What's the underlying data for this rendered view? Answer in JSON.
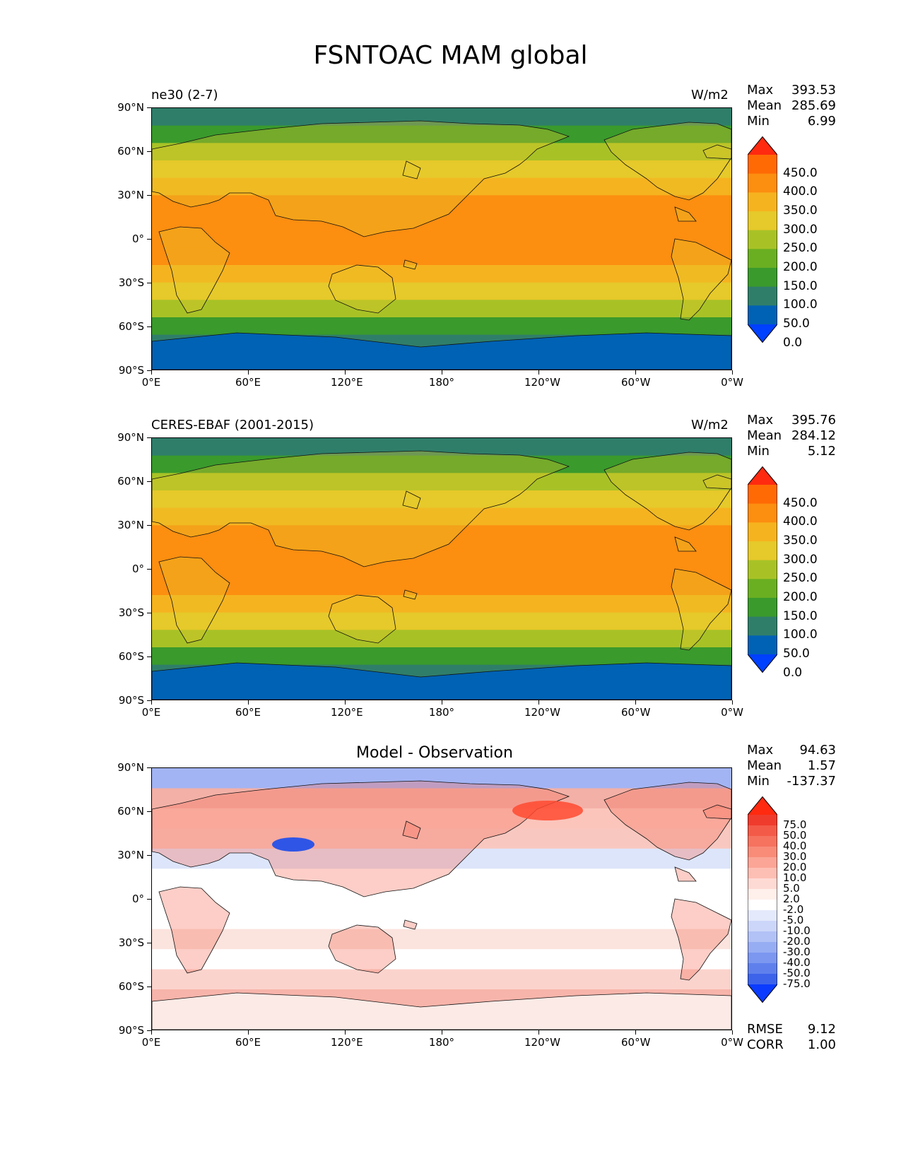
{
  "figure": {
    "title": "FSNTOAC MAM global"
  },
  "axes": {
    "lat_ticks": [
      "90°N",
      "60°N",
      "30°N",
      "0°",
      "30°S",
      "60°S",
      "90°S"
    ],
    "lon_ticks": [
      "0°E",
      "60°E",
      "120°E",
      "180°",
      "120°W",
      "60°W",
      "0°W"
    ]
  },
  "panels": [
    {
      "id": "model",
      "left_title": "ne30 (2-7)",
      "center_title": "",
      "units": "W/m2",
      "stats": [
        {
          "label": "Max",
          "value": "393.53"
        },
        {
          "label": "Mean",
          "value": "285.69"
        },
        {
          "label": "Min",
          "value": "6.99"
        }
      ],
      "colorbar": {
        "labels": [
          "450.0",
          "400.0",
          "350.0",
          "300.0",
          "250.0",
          "200.0",
          "150.0",
          "100.0",
          "50.0",
          "0.0"
        ],
        "colors": [
          "#ff2a0f",
          "#ff6a05",
          "#fc8e10",
          "#f6b320",
          "#e6c92a",
          "#a8c226",
          "#6aaf22",
          "#3a9a2c",
          "#2f7e6a",
          "#0062b4",
          "#0040ff"
        ]
      },
      "zonal_colors": [
        "#2f7e6a",
        "#3a9a2c",
        "#a8c226",
        "#e6c92a",
        "#f6b320",
        "#fc8e10",
        "#fc8e10",
        "#fc8e10",
        "#fc8e10",
        "#f6b320",
        "#e6c92a",
        "#a8c226",
        "#3a9a2c",
        "#2f7e6a",
        "#0062b4"
      ]
    },
    {
      "id": "obs",
      "left_title": "CERES-EBAF (2001-2015)",
      "center_title": "",
      "units": "W/m2",
      "stats": [
        {
          "label": "Max",
          "value": "395.76"
        },
        {
          "label": "Mean",
          "value": "284.12"
        },
        {
          "label": "Min",
          "value": "5.12"
        }
      ],
      "colorbar": {
        "labels": [
          "450.0",
          "400.0",
          "350.0",
          "300.0",
          "250.0",
          "200.0",
          "150.0",
          "100.0",
          "50.0",
          "0.0"
        ],
        "colors": [
          "#ff2a0f",
          "#ff6a05",
          "#fc8e10",
          "#f6b320",
          "#e6c92a",
          "#a8c226",
          "#6aaf22",
          "#3a9a2c",
          "#2f7e6a",
          "#0062b4",
          "#0040ff"
        ]
      },
      "zonal_colors": [
        "#2f7e6a",
        "#3a9a2c",
        "#a8c226",
        "#e6c92a",
        "#f6b320",
        "#fc8e10",
        "#fc8e10",
        "#fc8e10",
        "#fc8e10",
        "#f6b320",
        "#e6c92a",
        "#a8c226",
        "#3a9a2c",
        "#2f7e6a",
        "#0062b4"
      ]
    },
    {
      "id": "diff",
      "left_title": "",
      "center_title": "Model - Observation",
      "units": "",
      "stats": [
        {
          "label": "Max",
          "value": "94.63"
        },
        {
          "label": "Mean",
          "value": "1.57"
        },
        {
          "label": "Min",
          "value": "-137.37"
        }
      ],
      "metrics": [
        {
          "label": "RMSE",
          "value": "9.12"
        },
        {
          "label": "CORR",
          "value": "1.00"
        }
      ],
      "colorbar": {
        "labels": [
          "75.0",
          "50.0",
          "40.0",
          "30.0",
          "20.0",
          "10.0",
          "5.0",
          "2.0",
          "-2.0",
          "-5.0",
          "-10.0",
          "-20.0",
          "-30.0",
          "-40.0",
          "-50.0",
          "-75.0"
        ],
        "colors": [
          "#ff2a0f",
          "#ef3b2c",
          "#f45a48",
          "#f6735f",
          "#f88c79",
          "#fba596",
          "#fdbfb4",
          "#fedad4",
          "#fff0ec",
          "#ffffff",
          "#e4e9fb",
          "#ccd6f9",
          "#b2c2f6",
          "#97adf3",
          "#7b97ef",
          "#5f80ec",
          "#3d63ea",
          "#0a3bff"
        ]
      },
      "zonal_colors": [
        "#a3b4f4",
        "#f3b0a6",
        "#fbc5bb",
        "#f8c8c0",
        "#dde5fb",
        "#ffffff",
        "#ffffff",
        "#ffffff",
        "#fbe3de",
        "#ffffff",
        "#fbd3cd",
        "#f7b4aa",
        "#ffffff"
      ]
    }
  ]
}
